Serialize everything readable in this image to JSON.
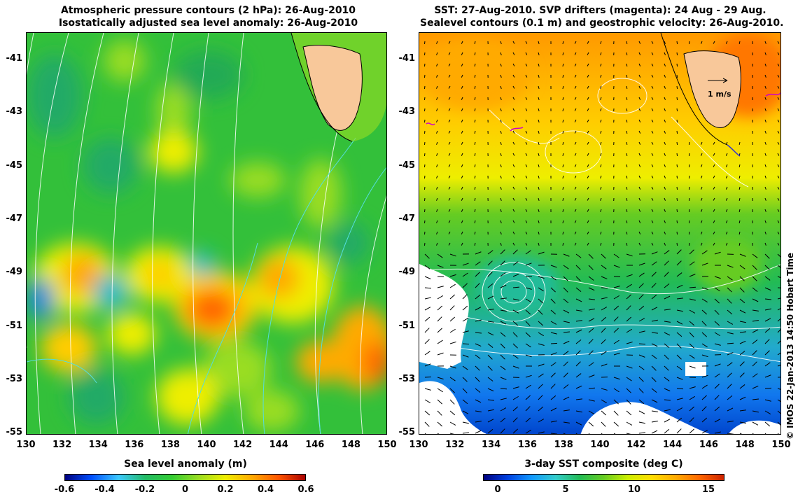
{
  "left_panel": {
    "title_line1": "Atmospheric pressure contours (2 hPa): 26-Aug-2010",
    "title_line2": "Isostatically adjusted sea level anomaly: 26-Aug-2010",
    "colorbar_label": "Sea level anomaly (m)",
    "colorbar_ticks": [
      "-0.6",
      "-0.4",
      "-0.2",
      "0",
      "0.2",
      "0.4",
      "0.6"
    ],
    "colormap": [
      "#00007f",
      "#0050ff",
      "#3cc8ff",
      "#22bb66",
      "#33cc33",
      "#99dd22",
      "#eeee00",
      "#ffaa00",
      "#ff5500",
      "#aa0000"
    ]
  },
  "right_panel": {
    "title_line1": "SST: 27-Aug-2010. SVP drifters (magenta): 24 Aug - 29 Aug.",
    "title_line2": "Sealevel contours (0.1 m) and geostrophic velocity: 26-Aug-2010.",
    "colorbar_label": "3-day SST composite (deg C)",
    "colorbar_ticks": [
      "0",
      "5",
      "10",
      "15"
    ],
    "scale_label": "1 m/s",
    "colormap": [
      "#00007f",
      "#0040e0",
      "#1199ff",
      "#33cccc",
      "#22bb55",
      "#66cc22",
      "#ccee00",
      "#ffdd00",
      "#ffaa00",
      "#ff6600",
      "#cc2200"
    ]
  },
  "axes": {
    "x_ticks": [
      "130",
      "132",
      "134",
      "136",
      "138",
      "140",
      "142",
      "144",
      "146",
      "148",
      "150"
    ],
    "y_ticks": [
      "-41",
      "-43",
      "-45",
      "-47",
      "-49",
      "-51",
      "-53",
      "-55"
    ]
  },
  "credit": "© IMOS 22-Jan-2013 14:50 Hobart Time",
  "colors": {
    "land": "#f8c89a",
    "pressure_contour": "#ffffff",
    "sealevel_contour_left": "#55dddd",
    "sealevel_contour_right": "#ffffff",
    "velocity_arrow": "#000000",
    "drifter": "#cc00cc"
  }
}
